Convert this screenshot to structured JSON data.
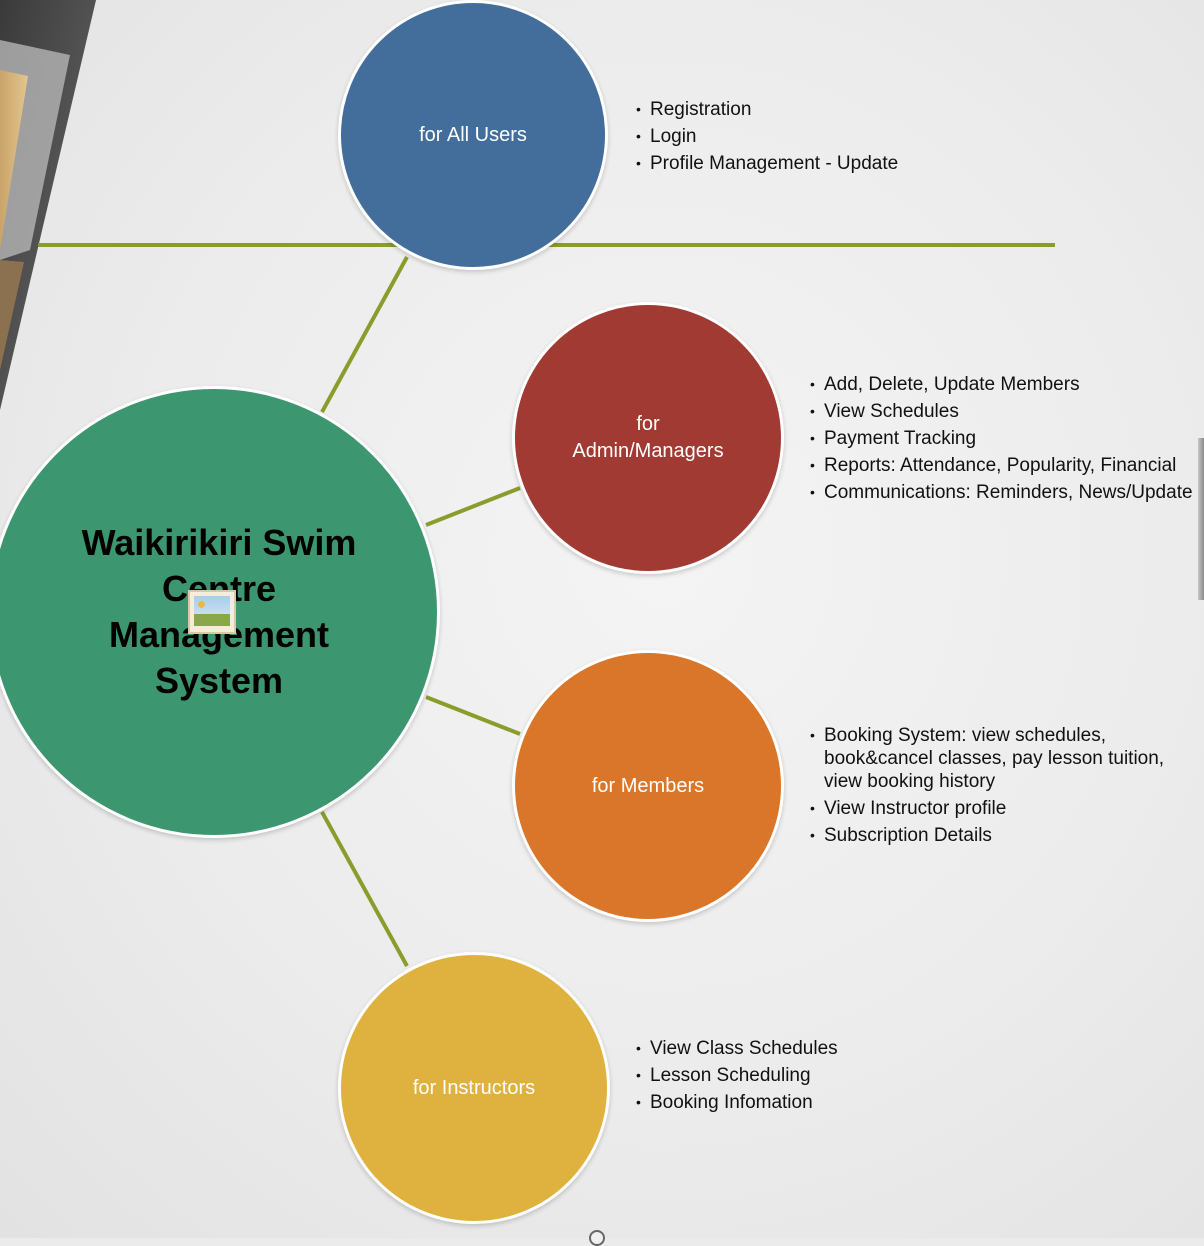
{
  "diagram": {
    "center": {
      "label": "Waikirikiri Swim Centre Management System",
      "color": "#3c9670",
      "icon": "image-placeholder-icon"
    },
    "nodes": [
      {
        "id": "all-users",
        "label": "for All Users",
        "color": "#436e9b",
        "items": [
          "Registration",
          "Login",
          "Profile Management - Update"
        ]
      },
      {
        "id": "admin-managers",
        "label": "for\nAdmin/Managers",
        "color": "#a03a32",
        "items": [
          "Add, Delete, Update Members",
          "View Schedules",
          "Payment Tracking",
          "Reports: Attendance, Popularity, Financial",
          "Communications: Reminders, News/Update"
        ]
      },
      {
        "id": "members",
        "label": "for Members",
        "color": "#d9762a",
        "items": [
          "Booking System: view schedules, book&cancel classes, pay lesson tuition, view booking history",
          "View Instructor profile",
          "Subscription Details"
        ]
      },
      {
        "id": "instructors",
        "label": "for Instructors",
        "color": "#dfb240",
        "items": [
          "View Class Schedules",
          "Lesson Scheduling",
          "Booking Infomation"
        ]
      }
    ],
    "connector_color": "#8b9c2c"
  }
}
